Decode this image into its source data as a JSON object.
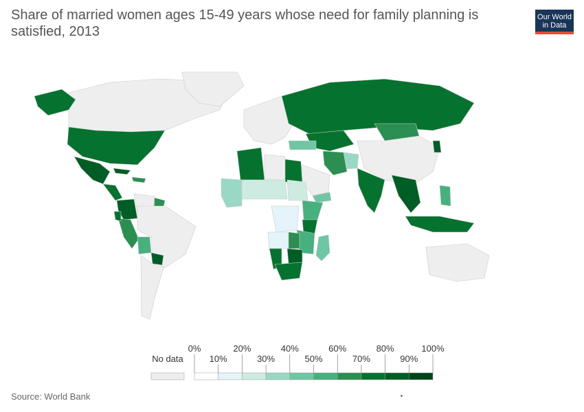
{
  "title": "Share of married women ages 15-49 years whose need for family planning is satisfied, 2013",
  "logo": {
    "line1": "Our World",
    "line2": "in Data"
  },
  "source": "Source: World Bank",
  "colors": {
    "no_data": "#eeeeee",
    "ocean": "#ffffff",
    "border": "#cccccc",
    "scale": [
      "#ffffff",
      "#e5f3fa",
      "#cdebe1",
      "#99d8c4",
      "#6fc6a4",
      "#47b07f",
      "#2a8f51",
      "#06722f",
      "#005d25",
      "#00441b"
    ]
  },
  "legend": {
    "no_data_label": "No data",
    "upper_ticks": [
      "0%",
      "20%",
      "40%",
      "60%",
      "80%",
      "100%"
    ],
    "lower_ticks": [
      "10%",
      "30%",
      "50%",
      "70%",
      "90%"
    ]
  },
  "map_data": {
    "type": "choropleth",
    "metric_unit": "%",
    "bins": [
      0,
      10,
      20,
      30,
      40,
      50,
      60,
      70,
      80,
      90,
      100
    ],
    "regions": [
      {
        "name": "Canada",
        "bin": null
      },
      {
        "name": "United States",
        "bin": 7
      },
      {
        "name": "Alaska",
        "bin": 7
      },
      {
        "name": "Mexico",
        "bin": 8
      },
      {
        "name": "Central America",
        "bin": 7
      },
      {
        "name": "Cuba",
        "bin": 8
      },
      {
        "name": "Caribbean",
        "bin": 6
      },
      {
        "name": "Colombia",
        "bin": 8
      },
      {
        "name": "Venezuela",
        "bin": null
      },
      {
        "name": "Guyana",
        "bin": 6
      },
      {
        "name": "Peru",
        "bin": 6
      },
      {
        "name": "Ecuador",
        "bin": 7
      },
      {
        "name": "Bolivia",
        "bin": 5
      },
      {
        "name": "Brazil",
        "bin": null
      },
      {
        "name": "Paraguay",
        "bin": 8
      },
      {
        "name": "Argentina",
        "bin": null
      },
      {
        "name": "Greenland",
        "bin": null
      },
      {
        "name": "Europe",
        "bin": null
      },
      {
        "name": "Russia",
        "bin": 7
      },
      {
        "name": "Kazakhstan",
        "bin": 7
      },
      {
        "name": "Mongolia",
        "bin": 6
      },
      {
        "name": "China",
        "bin": null
      },
      {
        "name": "North Korea",
        "bin": 8
      },
      {
        "name": "Iran",
        "bin": 6
      },
      {
        "name": "Afghanistan",
        "bin": 3
      },
      {
        "name": "Turkey",
        "bin": 4
      },
      {
        "name": "Saudi Arabia",
        "bin": null
      },
      {
        "name": "Yemen",
        "bin": 4
      },
      {
        "name": "India",
        "bin": 7
      },
      {
        "name": "Southeast Asia",
        "bin": 8
      },
      {
        "name": "Indonesia",
        "bin": 7
      },
      {
        "name": "Philippines",
        "bin": 5
      },
      {
        "name": "Australia",
        "bin": null
      },
      {
        "name": "Algeria",
        "bin": 7
      },
      {
        "name": "Libya",
        "bin": null
      },
      {
        "name": "Egypt",
        "bin": 7
      },
      {
        "name": "Sahel",
        "bin": 2
      },
      {
        "name": "West Africa",
        "bin": 3
      },
      {
        "name": "Sudan",
        "bin": 2
      },
      {
        "name": "Ethiopia",
        "bin": 5
      },
      {
        "name": "Kenya",
        "bin": 7
      },
      {
        "name": "DR Congo",
        "bin": 1
      },
      {
        "name": "Angola",
        "bin": 1
      },
      {
        "name": "East Africa",
        "bin": 5
      },
      {
        "name": "Zambia",
        "bin": 6
      },
      {
        "name": "Namibia",
        "bin": 7
      },
      {
        "name": "Zimbabwe",
        "bin": 8
      },
      {
        "name": "South Africa",
        "bin": 7
      },
      {
        "name": "Madagascar",
        "bin": 4
      }
    ]
  }
}
